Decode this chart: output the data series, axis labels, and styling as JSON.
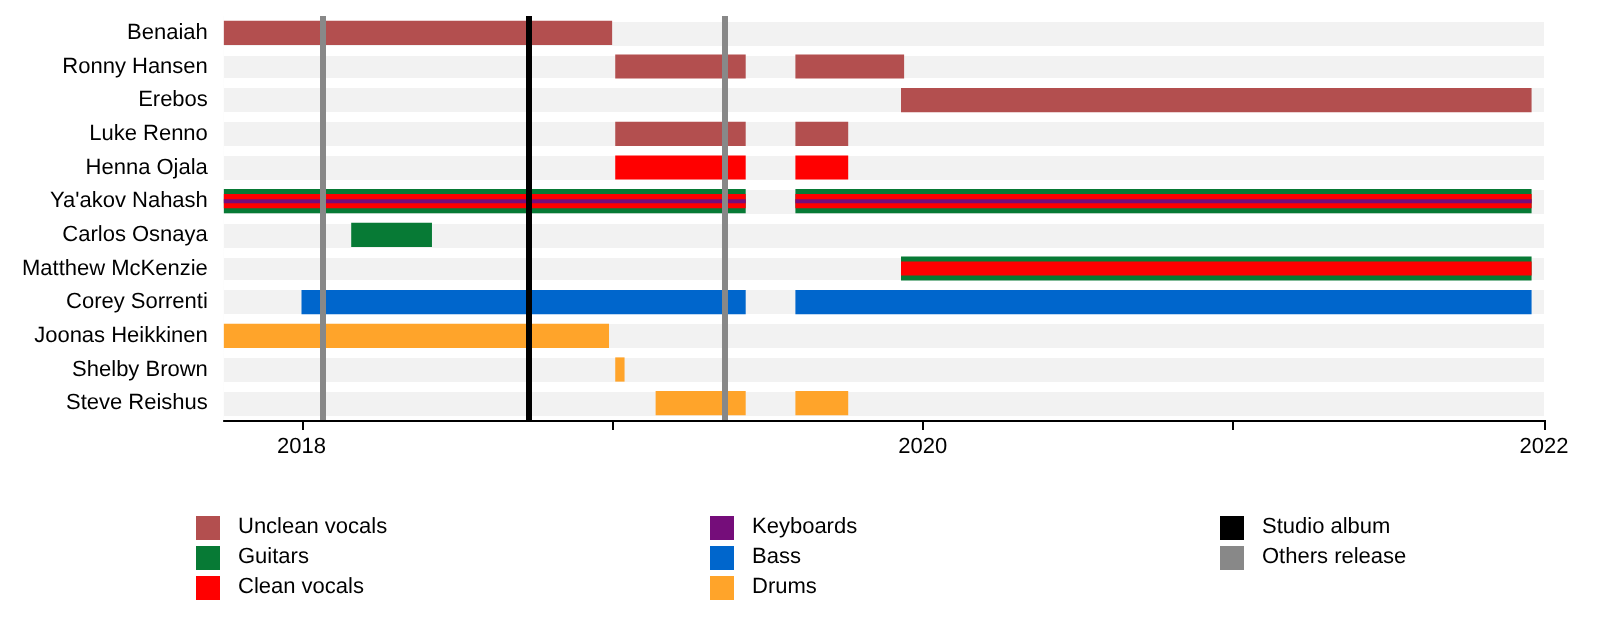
{
  "chart_data": {
    "type": "bar",
    "orientation": "horizontal",
    "legend": "bottom",
    "categories": [
      "Benaiah",
      "Ronny Hansen",
      "Erebos",
      "Luke Renno",
      "Henna Ojala",
      "Ya'akov Nahash",
      "Carlos Osnaya",
      "Matthew McKenzie",
      "Corey Sorrenti",
      "Joonas Heikkinen",
      "Shelby Brown",
      "Steve Reishus"
    ],
    "xlim": [
      2017.75,
      2022
    ],
    "xticks": [
      2018,
      {
        "value": 2019,
        "label": null
      },
      2020,
      {
        "value": 2021,
        "label": null
      },
      2022
    ],
    "series": [
      {
        "name": "Unclean vocals",
        "color": "#b34f4f",
        "base": [
          2017.75,
          2019.01,
          null,
          2019.01,
          null,
          null,
          null,
          null,
          null,
          null,
          null,
          null
        ],
        "values": [
          1.25,
          0.42,
          null,
          0.42,
          null,
          null,
          null,
          null,
          null,
          null,
          null,
          null
        ]
      },
      {
        "color": "#b34f4f",
        "base": [
          null,
          2019.59,
          2019.93,
          2019.59,
          null,
          null,
          null,
          null,
          null,
          null,
          null,
          null
        ],
        "values": [
          null,
          0.35,
          2.03,
          0.17,
          null,
          null,
          null,
          null,
          null,
          null,
          null,
          null
        ]
      },
      {
        "name": "Guitars",
        "color": "#077a35",
        "base": [
          null,
          null,
          null,
          null,
          null,
          2017.75,
          2018.16,
          null,
          null,
          null,
          null,
          null
        ],
        "values": [
          null,
          null,
          null,
          null,
          null,
          1.68,
          0.26,
          null,
          null,
          null,
          null,
          null
        ]
      },
      {
        "color": "#077a35",
        "base": [
          null,
          null,
          null,
          null,
          null,
          2019.59,
          null,
          2019.93,
          null,
          null,
          null,
          null
        ],
        "values": [
          null,
          null,
          null,
          null,
          null,
          2.37,
          null,
          2.03,
          null,
          null,
          null,
          null
        ]
      },
      {
        "name": "Clean vocals",
        "color": "#ff0000",
        "base": [
          null,
          null,
          null,
          null,
          2019.01,
          2017.75,
          null,
          null,
          null,
          null,
          null,
          null
        ],
        "values": [
          null,
          null,
          null,
          null,
          0.42,
          1.68,
          null,
          null,
          null,
          null,
          null,
          null
        ]
      },
      {
        "color": "#ff0000",
        "base": [
          null,
          null,
          null,
          null,
          2019.59,
          2019.59,
          null,
          2019.93,
          null,
          null,
          null,
          null
        ],
        "values": [
          null,
          null,
          null,
          null,
          0.17,
          2.37,
          null,
          2.03,
          null,
          null,
          null,
          null
        ]
      },
      {
        "name": "Keyboards",
        "color": "#750d7a",
        "base": [
          null,
          null,
          null,
          null,
          null,
          2017.75,
          null,
          null,
          null,
          null,
          null,
          null
        ],
        "values": [
          null,
          null,
          null,
          null,
          null,
          1.68,
          null,
          null,
          null,
          null,
          null,
          null
        ]
      },
      {
        "color": "#750d7a",
        "base": [
          null,
          null,
          null,
          null,
          null,
          2019.59,
          null,
          null,
          null,
          null,
          null,
          null
        ],
        "values": [
          null,
          null,
          null,
          null,
          null,
          2.37,
          null,
          null,
          null,
          null,
          null,
          null
        ]
      },
      {
        "name": "Bass",
        "color": "#0066cc",
        "base": [
          null,
          null,
          null,
          null,
          null,
          null,
          null,
          null,
          2018.0,
          null,
          null,
          null
        ],
        "values": [
          null,
          null,
          null,
          null,
          null,
          null,
          null,
          null,
          1.43,
          null,
          null,
          null
        ]
      },
      {
        "color": "#0066cc",
        "base": [
          null,
          null,
          null,
          null,
          null,
          null,
          null,
          null,
          2019.59,
          null,
          null,
          null
        ],
        "values": [
          null,
          null,
          null,
          null,
          null,
          null,
          null,
          null,
          2.37,
          null,
          null,
          null
        ]
      },
      {
        "name": "Drums",
        "color": "#ffa42a",
        "base": [
          null,
          null,
          null,
          null,
          null,
          null,
          null,
          null,
          null,
          2017.75,
          2019.01,
          2019.14
        ],
        "values": [
          null,
          null,
          null,
          null,
          null,
          null,
          null,
          null,
          null,
          1.24,
          0.03,
          0.29
        ]
      },
      {
        "color": "#ffa42a",
        "base": [
          null,
          null,
          null,
          null,
          null,
          null,
          null,
          null,
          null,
          null,
          null,
          2019.59
        ],
        "values": [
          null,
          null,
          null,
          null,
          null,
          null,
          null,
          null,
          null,
          null,
          null,
          0.17
        ]
      }
    ],
    "ref_lines": [
      {
        "axis": "x",
        "value": 2018.73,
        "label": "Studio album",
        "color": "#000000"
      },
      {
        "axis": "x",
        "value": 2018.07,
        "label": "Others release",
        "color": "#888888"
      },
      {
        "axis": "x",
        "value": 2019.36,
        "color": "#888888"
      }
    ]
  }
}
